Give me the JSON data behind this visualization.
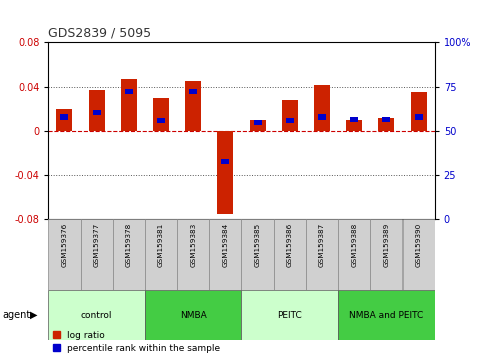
{
  "title": "GDS2839 / 5095",
  "samples": [
    "GSM159376",
    "GSM159377",
    "GSM159378",
    "GSM159381",
    "GSM159383",
    "GSM159384",
    "GSM159385",
    "GSM159386",
    "GSM159387",
    "GSM159388",
    "GSM159389",
    "GSM159390"
  ],
  "log_ratio": [
    0.02,
    0.037,
    0.047,
    0.03,
    0.045,
    -0.075,
    0.01,
    0.028,
    0.042,
    0.01,
    0.012,
    0.035
  ],
  "percentile_rank_offset": [
    0.01,
    0.014,
    0.033,
    0.007,
    0.033,
    -0.03,
    0.005,
    0.007,
    0.01,
    0.008,
    0.008,
    0.01
  ],
  "percentile_bar_height": 0.005,
  "ylim": [
    -0.08,
    0.08
  ],
  "yticks_left": [
    -0.08,
    -0.04,
    0,
    0.04,
    0.08
  ],
  "yticks_right": [
    0,
    25,
    50,
    75,
    100
  ],
  "log_ratio_color": "#cc2200",
  "percentile_color": "#0000cc",
  "zero_line_color": "#cc0000",
  "dotted_line_color": "#555555",
  "groups": [
    {
      "label": "control",
      "start": 0,
      "end": 3,
      "color": "#ccffcc"
    },
    {
      "label": "NMBA",
      "start": 3,
      "end": 6,
      "color": "#44cc44"
    },
    {
      "label": "PEITC",
      "start": 6,
      "end": 9,
      "color": "#ccffcc"
    },
    {
      "label": "NMBA and PEITC",
      "start": 9,
      "end": 12,
      "color": "#44cc44"
    }
  ],
  "legend_log_ratio": "log ratio",
  "legend_percentile": "percentile rank within the sample",
  "bar_width": 0.5,
  "title_color": "#333333",
  "left_label_color": "#cc0000",
  "right_label_color": "#0000cc",
  "sample_box_color": "#d0d0d0",
  "sample_box_edge": "#888888"
}
